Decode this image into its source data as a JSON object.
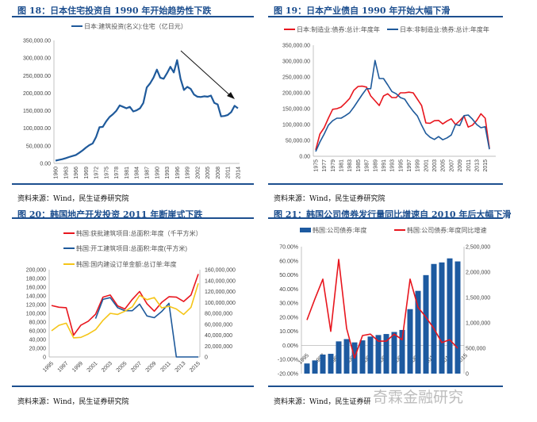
{
  "panels": [
    {
      "title": "图 18：日本住宅投资自 1990 年开始趋势性下跌",
      "source": "资料来源：Wind，民生证券研究院"
    },
    {
      "title": "图 19：日本产业债自 1990 年开始大幅下滑",
      "source": "资料来源：Wind，民生证券研究院"
    },
    {
      "title": "图 20：韩国地产开发投资 2011 年断崖式下跌",
      "source": "资料来源：Wind，民生证券研究院"
    },
    {
      "title": "图 21：韩国公司债券发行量同比增速自 2010 年后大幅下滑",
      "source": "资料来源：Wind，民生证券研"
    }
  ],
  "watermark": "奇霖金融研究",
  "chart_data": [
    {
      "type": "line",
      "x": [
        1960,
        1961,
        1962,
        1963,
        1964,
        1965,
        1966,
        1967,
        1968,
        1969,
        1970,
        1971,
        1972,
        1973,
        1974,
        1975,
        1976,
        1977,
        1978,
        1979,
        1980,
        1981,
        1982,
        1983,
        1984,
        1985,
        1986,
        1987,
        1988,
        1989,
        1990,
        1991,
        1992,
        1993,
        1994,
        1995,
        1996,
        1997,
        1998,
        1999,
        2000,
        2001,
        2002,
        2003,
        2004,
        2005,
        2006,
        2007,
        2008,
        2009,
        2010,
        2011,
        2012,
        2013,
        2014
      ],
      "xticks": [
        "1960",
        "1963",
        "1966",
        "1969",
        "1972",
        "1975",
        "1978",
        "1981",
        "1984",
        "1987",
        "1990",
        "1993",
        "1996",
        "1999",
        "2002",
        "2005",
        "2008",
        "2011",
        "2014"
      ],
      "yticks": [
        "0.00",
        "50,000.00",
        "100,000.00",
        "150,000.00",
        "200,000.00",
        "250,000.00",
        "300,000.00",
        "350,000.00"
      ],
      "ylim": [
        0,
        350000
      ],
      "series": [
        {
          "name": "日本:建筑投资(名义):住宅（亿日元）",
          "color": "#1f5a9b",
          "values": [
            8000,
            10000,
            12000,
            15000,
            18000,
            21000,
            24000,
            30000,
            37000,
            45000,
            52000,
            57000,
            75000,
            103000,
            104000,
            120000,
            132000,
            140000,
            150000,
            165000,
            161000,
            157000,
            161000,
            148000,
            151000,
            157000,
            172000,
            216000,
            228000,
            244000,
            267000,
            244000,
            241000,
            257000,
            275000,
            259000,
            294000,
            241000,
            209000,
            218000,
            212000,
            196000,
            190000,
            189000,
            191000,
            190000,
            193000,
            172000,
            168000,
            134000,
            135000,
            138000,
            146000,
            164000,
            157000
          ]
        }
      ],
      "annotation": "arrow pointing down from 1996 peak to 2014"
    },
    {
      "type": "line",
      "x": [
        1975,
        1976,
        1977,
        1978,
        1979,
        1980,
        1981,
        1982,
        1983,
        1984,
        1985,
        1986,
        1987,
        1988,
        1989,
        1990,
        1991,
        1992,
        1993,
        1994,
        1995,
        1996,
        1997,
        1998,
        1999,
        2000,
        2001,
        2002,
        2003,
        2004,
        2005,
        2006,
        2007,
        2008,
        2009,
        2010,
        2011,
        2012,
        2013,
        2014,
        2015,
        2016
      ],
      "xticks": [
        "1975",
        "1977",
        "1979",
        "1981",
        "1983",
        "1985",
        "1987",
        "1989",
        "1991",
        "1993",
        "1995",
        "1997",
        "1999",
        "2001",
        "2003",
        "2005",
        "2007",
        "2009",
        "2011",
        "2013",
        "2015"
      ],
      "yticks": [
        "0.00",
        "50,000.00",
        "100,000.00",
        "150,000.00",
        "200,000.00",
        "250,000.00",
        "300,000.00",
        "350,000.00"
      ],
      "ylim": [
        0,
        350000
      ],
      "series": [
        {
          "name": "日本:制造业:债券:总计:年度年",
          "color": "#e8161e",
          "values": [
            20000,
            70000,
            90000,
            120000,
            148000,
            150000,
            155000,
            168000,
            182000,
            208000,
            220000,
            221000,
            218000,
            190000,
            175000,
            160000,
            190000,
            197000,
            185000,
            185000,
            200000,
            200000,
            202000,
            200000,
            180000,
            160000,
            105000,
            104000,
            112000,
            113000,
            102000,
            111000,
            118000,
            100000,
            112000,
            127000,
            92000,
            98000,
            113000,
            134000,
            120000,
            25000
          ]
        },
        {
          "name": "日本:非制造业:债券:总计:年度年",
          "color": "#1f5a9b",
          "values": [
            15000,
            45000,
            70000,
            98000,
            112000,
            120000,
            120000,
            128000,
            137000,
            155000,
            175000,
            195000,
            213000,
            213000,
            302000,
            245000,
            245000,
            225000,
            204000,
            197000,
            185000,
            180000,
            160000,
            142000,
            127000,
            98000,
            72000,
            60000,
            53000,
            62000,
            52000,
            58000,
            67000,
            100000,
            97000,
            128000,
            130000,
            117000,
            100000,
            90000,
            93000,
            22000
          ]
        }
      ]
    },
    {
      "type": "line",
      "x": [
        1995,
        1996,
        1997,
        1998,
        1999,
        2000,
        2001,
        2002,
        2003,
        2004,
        2005,
        2006,
        2007,
        2008,
        2009,
        2010,
        2011,
        2012,
        2013,
        2014,
        2015
      ],
      "xticks": [
        "1995",
        "1997",
        "1999",
        "2001",
        "2003",
        "2005",
        "2007",
        "2009",
        "2011",
        "2013",
        "2015"
      ],
      "yticks": [
        "0",
        "20,000",
        "40,000",
        "60,000",
        "80,000",
        "100,000",
        "120,000",
        "140,000",
        "160,000",
        "180,000",
        "200,000"
      ],
      "y2ticks": [
        "0",
        "20,000,000",
        "40,000,000",
        "60,000,000",
        "80,000,000",
        "100,000,000",
        "120,000,000",
        "140,000,000",
        "160,000,000"
      ],
      "ylim": [
        0,
        200000
      ],
      "y2lim": [
        0,
        160000000
      ],
      "series": [
        {
          "name": "韩国:获批建筑项目:总面积:年度（千平方米）",
          "color": "#e8161e",
          "axis": "left",
          "values": [
            118000,
            114000,
            113000,
            50000,
            73000,
            82000,
            98000,
            137000,
            142000,
            117000,
            110000,
            132000,
            150000,
            122000,
            105000,
            125000,
            138000,
            137000,
            127000,
            142000,
            190000
          ]
        },
        {
          "name": "韩国:开工建筑项目:总面积:年度(平方米)",
          "color": "#1f5a9b",
          "axis": "left",
          "values": [
            null,
            null,
            null,
            null,
            null,
            null,
            88000,
            132000,
            136000,
            113000,
            106000,
            106000,
            121000,
            94000,
            90000,
            104000,
            123000,
            0,
            0,
            0,
            0
          ]
        },
        {
          "name": "韩国:国内建设订单金额:总订单:年度",
          "color": "#f5c518",
          "axis": "right",
          "values": [
            48000000,
            58000000,
            62000000,
            35000000,
            36000000,
            42000000,
            50000000,
            67000000,
            80000000,
            78000000,
            84000000,
            92000000,
            113000000,
            105000000,
            109000000,
            90000000,
            93000000,
            88000000,
            78000000,
            91000000,
            135000000
          ]
        }
      ]
    },
    {
      "type": "bar+line",
      "x": [
        1995,
        1996,
        1997,
        1998,
        1999,
        2000,
        2001,
        2002,
        2003,
        2004,
        2005,
        2006,
        2007,
        2008,
        2009,
        2010,
        2011,
        2012,
        2013,
        2014
      ],
      "xticks": [
        "1995",
        "1997",
        "1999",
        "2001",
        "2003",
        "2005",
        "2007",
        "2009",
        "2011",
        "2013",
        "2015"
      ],
      "yticks": [
        "-20.00%",
        "-10.00%",
        "0.00%",
        "10.00%",
        "20.00%",
        "30.00%",
        "40.00%",
        "50.00%",
        "60.00%",
        "70.00%"
      ],
      "y2ticks": [
        "0",
        "500,000",
        "1,000,000",
        "1,500,000",
        "2,000,000",
        "2,500,000"
      ],
      "ylim": [
        -20,
        70
      ],
      "y2lim": [
        0,
        2500000
      ],
      "series": [
        {
          "name": "韩国:公司债券:年度",
          "type": "bar",
          "color": "#1d5aa0",
          "axis": "right",
          "values": [
            200000,
            260000,
            375000,
            390000,
            635000,
            680000,
            615000,
            655000,
            730000,
            760000,
            780000,
            820000,
            860000,
            1270000,
            1630000,
            1940000,
            2160000,
            2190000,
            2270000,
            2210000
          ]
        },
        {
          "name": "韩国:公司债券:年度同比增速",
          "type": "line",
          "color": "#e8161e",
          "axis": "left",
          "values": [
            18,
            33,
            47,
            10,
            61,
            12,
            -9,
            7,
            8,
            3,
            3,
            8,
            4,
            47,
            27,
            20,
            12,
            2,
            4,
            -2
          ]
        }
      ]
    }
  ]
}
